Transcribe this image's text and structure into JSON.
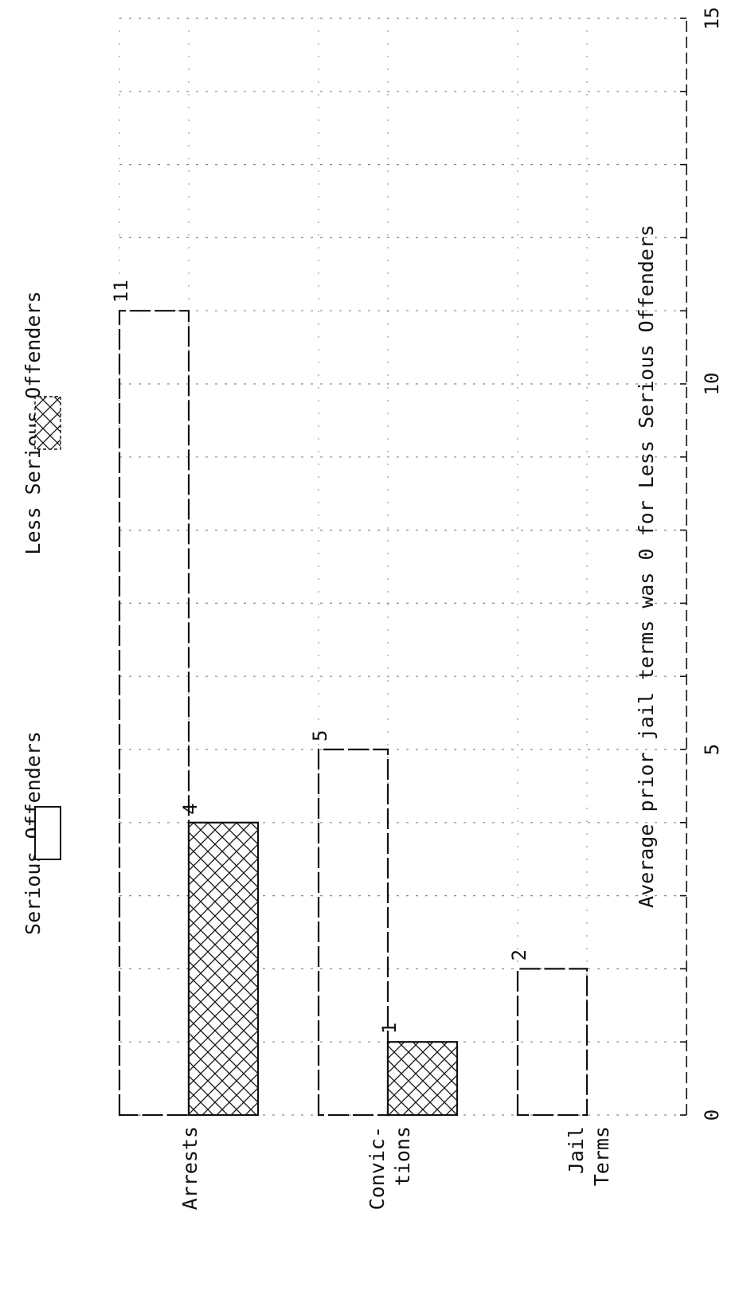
{
  "chart_data": {
    "type": "bar",
    "orientation": "horizontal",
    "categories": [
      "Arrests",
      "Convic-\ntions",
      "Jail\nTerms"
    ],
    "series": [
      {
        "name": "Serious Offenders",
        "values": [
          11,
          5,
          2
        ],
        "pattern": "open",
        "value_labels": [
          "11",
          "5",
          "2"
        ]
      },
      {
        "name": "Less Serious Offenders",
        "values": [
          4,
          1,
          0
        ],
        "pattern": "crosshatch",
        "value_labels": [
          "4",
          "1",
          ""
        ]
      }
    ],
    "x_ticks": [
      0,
      5,
      10,
      15
    ],
    "xlim": [
      0,
      15
    ],
    "grid": true,
    "legend_position": "top",
    "annotation": "Average prior jail terms was 0 for Less Serious Offenders",
    "colors": {
      "ink": "#111111",
      "grid": "#8a8a8a"
    }
  }
}
